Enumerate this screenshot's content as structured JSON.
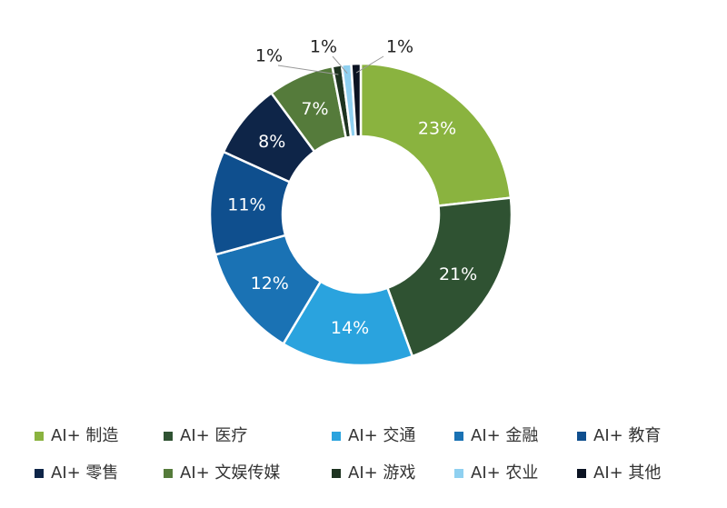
{
  "chart_data": {
    "type": "donut",
    "categories": [
      "AI+ 制造",
      "AI+ 医疗",
      "AI+ 交通",
      "AI+ 金融",
      "AI+ 教育",
      "AI+ 零售",
      "AI+ 文娱传媒",
      "AI+ 游戏",
      "AI+ 农业",
      "AI+ 其他"
    ],
    "values": [
      23,
      21,
      14,
      12,
      11,
      8,
      7,
      1,
      1,
      1
    ],
    "value_labels": [
      "23%",
      "21%",
      "14%",
      "12%",
      "11%",
      "8%",
      "7%",
      "1%",
      "1%",
      "1%"
    ],
    "colors": [
      "#8ab33f",
      "#2f5232",
      "#2aa3de",
      "#1a72b4",
      "#0f4f8e",
      "#0e2548",
      "#557b3b",
      "#1d3320",
      "#8fd0f0",
      "#0b1322"
    ]
  }
}
